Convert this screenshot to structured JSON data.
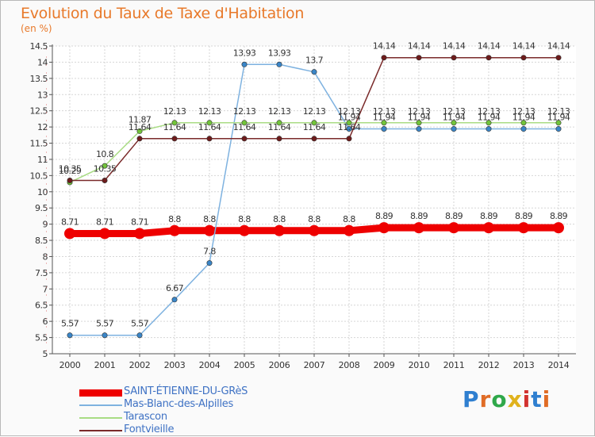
{
  "title": "Evolution du Taux de Taxe d'Habitation",
  "unit_label": "(en %)",
  "brand": {
    "text": "Proxiti",
    "letters": [
      "P",
      "r",
      "o",
      "x",
      "i",
      "t",
      "i"
    ],
    "colors": [
      "#2f7fd0",
      "#e06c26",
      "#2fa84a",
      "#e0b21c",
      "#d2322f",
      "#2f7fd0",
      "#e06c26"
    ]
  },
  "chart_data": {
    "type": "line",
    "categories": [
      "2000",
      "2001",
      "2002",
      "2003",
      "2004",
      "2005",
      "2006",
      "2007",
      "2008",
      "2009",
      "2010",
      "2011",
      "2012",
      "2013",
      "2014"
    ],
    "ylim": [
      5,
      14.5
    ],
    "yticks": [
      "5",
      "5.5",
      "6",
      "6.5",
      "7",
      "7.5",
      "8",
      "8.5",
      "9",
      "9.5",
      "10",
      "10.5",
      "11",
      "11.5",
      "12",
      "12.5",
      "13",
      "13.5",
      "14",
      "14.5"
    ],
    "grid": true,
    "legend_position": "bottom-left",
    "series": [
      {
        "name": "SAINT-ÉTIENNE-DU-GRèS",
        "color": "#ee0000",
        "line_color": "#ee0000",
        "weight": "thick",
        "values": [
          8.71,
          8.71,
          8.71,
          8.8,
          8.8,
          8.8,
          8.8,
          8.8,
          8.8,
          8.89,
          8.89,
          8.89,
          8.89,
          8.89,
          8.89
        ],
        "labels": [
          "8.71",
          "8.71",
          "8.71",
          "8.8",
          "8.8",
          "8.8",
          "8.8",
          "8.8",
          "8.8",
          "8.89",
          "8.89",
          "8.89",
          "8.89",
          "8.89",
          "8.89"
        ]
      },
      {
        "name": "Mas-Blanc-des-Alpilles",
        "color": "#3a86c8",
        "line_color": "#7eb2e0",
        "weight": "thin",
        "values": [
          5.57,
          5.57,
          5.57,
          6.67,
          7.8,
          13.93,
          13.93,
          13.7,
          11.94,
          11.94,
          11.94,
          11.94,
          11.94,
          11.94,
          11.94
        ],
        "labels": [
          "5.57",
          "5.57",
          "5.57",
          "6.67",
          "7.8",
          "13.93",
          "13.93",
          "13.7",
          "11.94",
          "11.94",
          "11.94",
          "11.94",
          "11.94",
          "11.94",
          "11.94"
        ]
      },
      {
        "name": "Tarascon",
        "color": "#72c43a",
        "line_color": "#a9dc84",
        "weight": "thin",
        "values": [
          10.29,
          10.8,
          11.87,
          12.13,
          12.13,
          12.13,
          12.13,
          12.13,
          12.13,
          12.13,
          12.13,
          12.13,
          12.13,
          12.13,
          12.13
        ],
        "labels": [
          "10.29",
          "10.8",
          "11.87",
          "12.13",
          "12.13",
          "12.13",
          "12.13",
          "12.13",
          "12.13",
          "12.13",
          "12.13",
          "12.13",
          "12.13",
          "12.13",
          "12.13"
        ]
      },
      {
        "name": "Fontvieille",
        "color": "#6e1c1c",
        "line_color": "#7a2a2a",
        "weight": "thin",
        "values": [
          10.35,
          10.35,
          11.64,
          11.64,
          11.64,
          11.64,
          11.64,
          11.64,
          11.64,
          14.14,
          14.14,
          14.14,
          14.14,
          14.14,
          14.14
        ],
        "labels": [
          "10.35",
          "10.35",
          "11.64",
          "11.64",
          "11.64",
          "11.64",
          "11.64",
          "11.64",
          "11.64",
          "14.14",
          "14.14",
          "14.14",
          "14.14",
          "14.14",
          "14.14"
        ]
      }
    ]
  }
}
